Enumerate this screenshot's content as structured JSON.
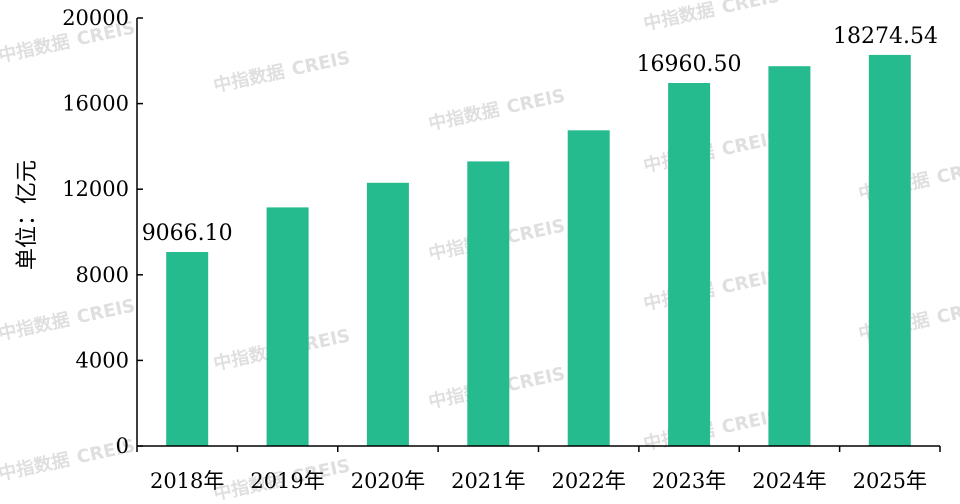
{
  "watermark": {
    "cn": "中指数据",
    "en": "CREIS"
  },
  "colors": {
    "bar": "#26bb8f",
    "axis": "#000000",
    "text": "#000000"
  },
  "chart_data": {
    "type": "bar",
    "ylabel": "单位：亿元",
    "ylim": [
      0,
      20000
    ],
    "yticks": [
      0,
      4000,
      8000,
      12000,
      16000,
      20000
    ],
    "categories": [
      "2018年",
      "2019年",
      "2020年",
      "2021年",
      "2022年",
      "2023年",
      "2024年",
      "2025年"
    ],
    "values": [
      9066.1,
      11150,
      12300,
      13300,
      14750,
      16960.5,
      17750,
      18274.54
    ],
    "data_labels": [
      "9066.10",
      "",
      "",
      "",
      "",
      "16960.50",
      "",
      "18274.54"
    ],
    "grid": false,
    "legend": "none"
  }
}
